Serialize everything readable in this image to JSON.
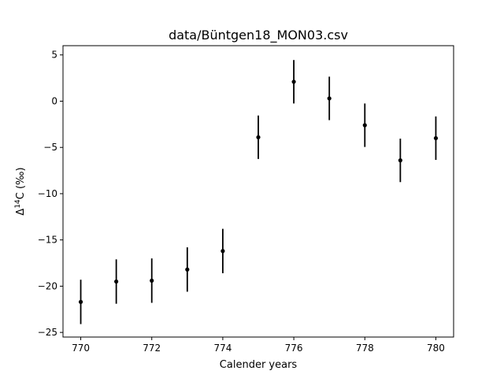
{
  "chart_data": {
    "type": "scatter",
    "title": "data/Büntgen18_MON03.csv",
    "xlabel": "Calender years",
    "ylabel_main": "Δ",
    "ylabel_sup": "14",
    "ylabel_tail": "C (‰)",
    "xlim": [
      769.5,
      780.5
    ],
    "ylim": [
      -25.5,
      6
    ],
    "xticks": [
      770,
      772,
      774,
      776,
      778,
      780
    ],
    "xtick_labels": [
      "770",
      "772",
      "774",
      "776",
      "778",
      "780"
    ],
    "yticks": [
      -25,
      -20,
      -15,
      -10,
      -5,
      0,
      5
    ],
    "ytick_labels": [
      "−25",
      "−20",
      "−15",
      "−10",
      "−5",
      "0",
      "5"
    ],
    "grid": false,
    "legend": false,
    "marker_color": "#000000",
    "series": [
      {
        "x": [
          770,
          771,
          772,
          773,
          774,
          775,
          776,
          777,
          778,
          779,
          780
        ],
        "y": [
          -21.7,
          -19.5,
          -19.4,
          -18.2,
          -16.2,
          -3.9,
          2.1,
          0.3,
          -2.6,
          -6.4,
          -4.0
        ],
        "yerr": [
          2.4,
          2.4,
          2.4,
          2.4,
          2.4,
          2.35,
          2.35,
          2.35,
          2.35,
          2.35,
          2.35
        ]
      }
    ]
  }
}
